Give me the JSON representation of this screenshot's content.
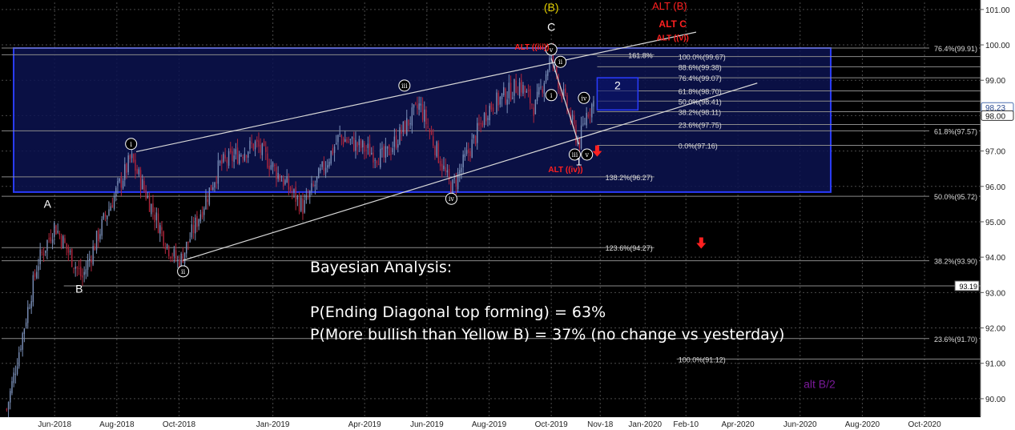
{
  "chart_data": {
    "type": "candlestick",
    "ylim": [
      89.5,
      101.2
    ],
    "y_ticks": [
      90.0,
      91.0,
      92.0,
      93.0,
      94.0,
      95.0,
      96.0,
      97.0,
      98.0,
      99.0,
      100.0,
      101.0
    ],
    "x_ticks": [
      "Jun-2018",
      "Aug-2018",
      "Oct-2018",
      "Jan-2019",
      "Apr-2019",
      "Jun-2019",
      "Aug-2019",
      "Oct-2019",
      "Nov-18",
      "Jan-2020",
      "Feb-10",
      "Apr-2020",
      "Jun-2020",
      "Aug-2020",
      "Oct-2020"
    ],
    "price_path": [
      {
        "t": "2018-04-15",
        "v": 89.7
      },
      {
        "t": "2018-05-15",
        "v": 93.8
      },
      {
        "t": "2018-06-01",
        "v": 94.9
      },
      {
        "t": "2018-06-28",
        "v": 93.4
      },
      {
        "t": "2018-07-20",
        "v": 95.1
      },
      {
        "t": "2018-08-15",
        "v": 96.8
      },
      {
        "t": "2018-09-20",
        "v": 94.3
      },
      {
        "t": "2018-10-01",
        "v": 93.8
      },
      {
        "t": "2018-11-10",
        "v": 96.6
      },
      {
        "t": "2018-12-15",
        "v": 97.2
      },
      {
        "t": "2019-01-31",
        "v": 95.4
      },
      {
        "t": "2019-03-07",
        "v": 97.4
      },
      {
        "t": "2019-04-20",
        "v": 96.8
      },
      {
        "t": "2019-05-25",
        "v": 98.3
      },
      {
        "t": "2019-06-25",
        "v": 95.9
      },
      {
        "t": "2019-07-31",
        "v": 98.2
      },
      {
        "t": "2019-08-31",
        "v": 98.9
      },
      {
        "t": "2019-09-15",
        "v": 98.2
      },
      {
        "t": "2019-10-01",
        "v": 99.7
      },
      {
        "t": "2019-10-10",
        "v": 98.8
      },
      {
        "t": "2019-10-28",
        "v": 97.2
      },
      {
        "t": "2019-11-05",
        "v": 98.1
      },
      {
        "t": "2019-11-12",
        "v": 98.4
      }
    ],
    "last_price": "98.23",
    "price_box": "98.00",
    "big_box": {
      "t1": "2018-04-10",
      "t2": "2020-07-01",
      "top": 99.91,
      "bottom": 95.84
    },
    "wave2_box": {
      "t1": "2019-11-15",
      "t2": "2019-12-25",
      "top": 99.07,
      "bottom": 98.16,
      "label": "2"
    },
    "channel_lines": [
      {
        "t1": "2018-08-20",
        "v1": 96.98,
        "t2": "2020-02-20",
        "v2": 100.36
      },
      {
        "t1": "2018-10-05",
        "v1": 93.91,
        "t2": "2020-04-20",
        "v2": 98.92
      }
    ],
    "impulse_lines": [
      {
        "t1": "2019-10-01",
        "v1": 99.62,
        "t2": "2019-10-28",
        "v2": 97.19
      }
    ],
    "hlines": [
      {
        "v": 99.91,
        "t1": "2018-04-10",
        "label": "76.4%(99.91)",
        "right": true
      },
      {
        "v": 97.57,
        "t1": "2018-04-10",
        "label": "61.8%(97.57)",
        "right": true
      },
      {
        "v": 95.72,
        "t1": "2018-04-10",
        "label": "50.0%(95.72)",
        "right": true
      },
      {
        "v": 93.9,
        "t1": "2018-04-10",
        "label": "38.2%(93.90)",
        "right": true
      },
      {
        "v": 91.7,
        "t1": "2018-04-10",
        "label": "23.6%(91.70)",
        "right": true
      },
      {
        "v": 93.19,
        "t1": "2018-06-10",
        "label": "93.19",
        "right": true,
        "white_box": true
      },
      {
        "v": 99.67,
        "t1": "2019-11-15",
        "label": "100.0%(99.67)"
      },
      {
        "v": 99.38,
        "t1": "2019-11-15",
        "label": "88.6%(99.38)"
      },
      {
        "v": 99.07,
        "t1": "2019-11-15",
        "label": "76.4%(99.07)"
      },
      {
        "v": 98.7,
        "t1": "2019-11-15",
        "label": "61.8%(98.70)"
      },
      {
        "v": 98.41,
        "t1": "2019-11-15",
        "label": "50.0%(98.41)"
      },
      {
        "v": 98.11,
        "t1": "2019-11-15",
        "label": "38.2%(98.11)"
      },
      {
        "v": 97.75,
        "t1": "2019-11-15",
        "label": "23.6%(97.75)"
      },
      {
        "v": 97.16,
        "t1": "2019-11-15",
        "label": "0.0%(97.16)"
      },
      {
        "v": 99.72,
        "t1": "2018-04-10",
        "label": "161.8%",
        "end": "2020-01-10"
      },
      {
        "v": 96.27,
        "t1": "2018-04-10",
        "label": "138.2%(96.27)",
        "end": "2020-01-10"
      },
      {
        "v": 94.27,
        "t1": "2018-04-10",
        "label": "123.6%(94.27)",
        "end": "2020-01-10"
      },
      {
        "v": 91.12,
        "t1": "2020-02-01",
        "label": "100.0%(91.12)"
      }
    ],
    "wave_labels": [
      {
        "text": "A",
        "t": "2018-05-25",
        "v": 95.4,
        "color": "#ffffff"
      },
      {
        "text": "B",
        "t": "2018-06-25",
        "v": 93.0,
        "color": "#ffffff"
      },
      {
        "text": "C",
        "t": "2019-10-01",
        "v": 100.4,
        "color": "#ffffff"
      },
      {
        "text": "(B)",
        "t": "2019-10-01",
        "v": 100.95,
        "color": "#e6d200"
      },
      {
        "text": "1",
        "t": "2019-10-28",
        "v": 96.6,
        "color": "#ffffff"
      },
      {
        "text": "2",
        "t": "2019-12-05",
        "v": 98.75,
        "color": "#ffffff"
      },
      {
        "text": "alt B/2",
        "t": "2020-06-20",
        "v": 90.3,
        "color": "#7a1a9a"
      }
    ],
    "circle_labels": [
      {
        "text": "i",
        "t": "2018-08-15",
        "v": 97.2
      },
      {
        "text": "ii",
        "t": "2018-10-05",
        "v": 93.6
      },
      {
        "text": "iii",
        "t": "2019-05-10",
        "v": 98.85
      },
      {
        "text": "iv",
        "t": "2019-06-25",
        "v": 95.65
      },
      {
        "text": "v",
        "t": "2019-10-01",
        "v": 99.87
      },
      {
        "text": "i",
        "t": "2019-10-01",
        "v": 98.58
      },
      {
        "text": "ii",
        "t": "2019-10-10",
        "v": 99.52
      },
      {
        "text": "iii",
        "t": "2019-10-24",
        "v": 96.9
      },
      {
        "text": "iv",
        "t": "2019-11-02",
        "v": 98.5
      },
      {
        "text": "v",
        "t": "2019-11-05",
        "v": 96.9
      }
    ],
    "red_labels": [
      {
        "text": "ALT (B)",
        "t": "2020-01-25",
        "v": 101.0,
        "size": 13,
        "weight": "normal"
      },
      {
        "text": "ALT C",
        "t": "2020-01-28",
        "v": 100.5,
        "size": 12,
        "weight": "bold"
      },
      {
        "text": "ALT ((v))",
        "t": "2020-01-28",
        "v": 100.12,
        "size": 10,
        "weight": "bold"
      },
      {
        "text": "ALT ((iii))",
        "t": "2019-09-12",
        "v": 99.87,
        "size": 10,
        "weight": "bold"
      },
      {
        "text": "ALT ((iv))",
        "t": "2019-10-15",
        "v": 96.4,
        "size": 10,
        "weight": "bold"
      }
    ],
    "red_arrows": [
      {
        "t": "2019-11-15",
        "v": 97.0
      },
      {
        "t": "2020-02-25",
        "v": 94.4
      }
    ]
  },
  "bayesian": {
    "title": "Bayesian Analysis:",
    "line1": "P(Ending Diagonal top forming) = 63%",
    "line2": "P(More bullish than Yellow B) = 37% (no change vs yesterday)"
  },
  "colors": {
    "background": "#000000",
    "grid": "#4a4a4a",
    "box_fill": "#0c1350",
    "box_border": "#2a3cff",
    "candle_up": "#7a8fb8",
    "candle_down": "#b0263c",
    "red": "#ff2020"
  }
}
